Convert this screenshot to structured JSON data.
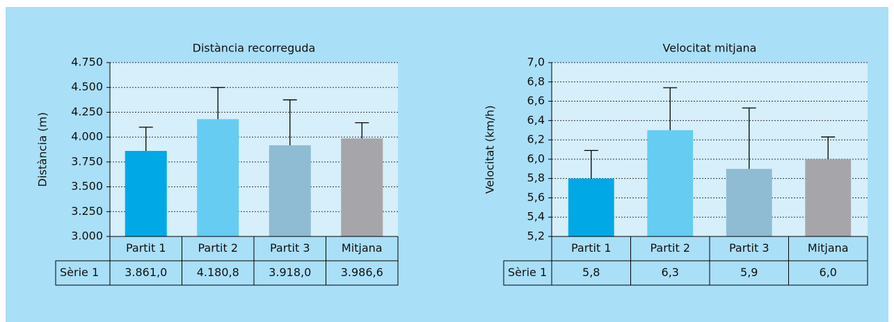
{
  "chart_data": [
    {
      "type": "bar",
      "title": "Distància recorreguda",
      "y_label": "Distància (m)",
      "categories": [
        "Partit 1",
        "Partit 2",
        "Partit 3",
        "Mitjana"
      ],
      "series": [
        {
          "name": "Sèrie 1",
          "colors": [
            "#00a9e6",
            "#66ccf2",
            "#8fbcd2",
            "#a6a6aa"
          ],
          "values": [
            3861.0,
            4180.8,
            3918.0,
            3986.6
          ],
          "value_labels": [
            "3.861,0",
            "4.180,8",
            "3.918,0",
            "3.986,6"
          ],
          "errors": [
            239,
            319,
            457,
            158
          ]
        }
      ],
      "ylim": [
        3000,
        4750
      ],
      "yticks": [
        {
          "value": 3000,
          "label": "3.000"
        },
        {
          "value": 3250,
          "label": "3.250"
        },
        {
          "value": 3500,
          "label": "3.500"
        },
        {
          "value": 3750,
          "label": "3.750"
        },
        {
          "value": 4000,
          "label": "4.000"
        },
        {
          "value": 4250,
          "label": "4.250"
        },
        {
          "value": 4500,
          "label": "4.500"
        },
        {
          "value": 4750,
          "label": "4.750"
        }
      ],
      "grid": true
    },
    {
      "type": "bar",
      "title": "Velocitat mitjana",
      "y_label": "Velocitat (km/h)",
      "categories": [
        "Partit 1",
        "Partit 2",
        "Partit 3",
        "Mitjana"
      ],
      "series": [
        {
          "name": "Sèrie 1",
          "colors": [
            "#00a9e6",
            "#66ccf2",
            "#8fbcd2",
            "#a6a6aa"
          ],
          "values": [
            5.8,
            6.3,
            5.9,
            6.0
          ],
          "value_labels": [
            "5,8",
            "6,3",
            "5,9",
            "6,0"
          ],
          "errors": [
            0.29,
            0.44,
            0.63,
            0.23
          ]
        }
      ],
      "ylim": [
        5.2,
        7.0
      ],
      "yticks": [
        {
          "value": 5.2,
          "label": "5,2"
        },
        {
          "value": 5.4,
          "label": "5,4"
        },
        {
          "value": 5.6,
          "label": "5,6"
        },
        {
          "value": 5.8,
          "label": "5,8"
        },
        {
          "value": 6.0,
          "label": "6,0"
        },
        {
          "value": 6.2,
          "label": "6,2"
        },
        {
          "value": 6.4,
          "label": "6,4"
        },
        {
          "value": 6.6,
          "label": "6,6"
        },
        {
          "value": 6.8,
          "label": "6,8"
        },
        {
          "value": 7.0,
          "label": "7,0"
        }
      ],
      "grid": true
    }
  ]
}
